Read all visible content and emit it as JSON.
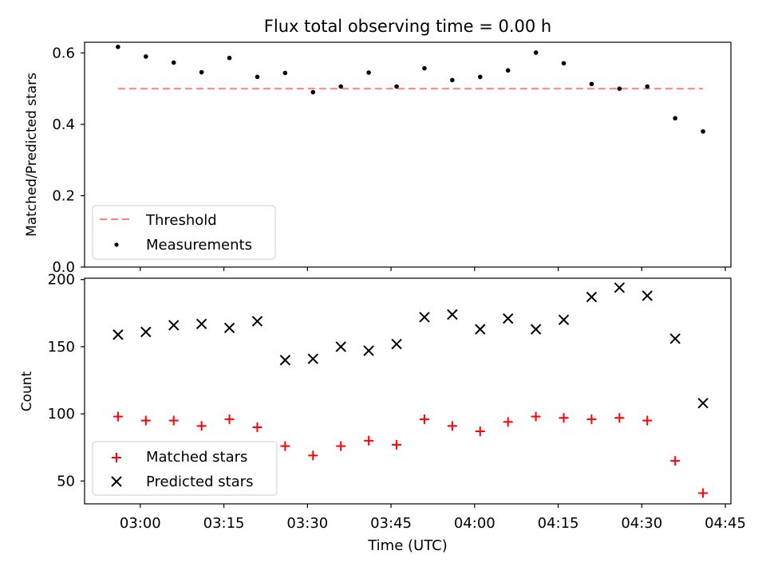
{
  "chart_data": [
    {
      "type": "scatter",
      "title": "Flux total observing time = 0.00 h",
      "xlabel": "",
      "ylabel": "Matched/Predicted stars",
      "xlim": [
        "02:50",
        "04:46"
      ],
      "ylim": [
        0,
        0.63
      ],
      "x_ticks": [
        "03:00",
        "03:15",
        "03:30",
        "03:45",
        "04:00",
        "04:15",
        "04:30",
        "04:45"
      ],
      "y_ticks": [
        "0.0",
        "0.2",
        "0.4",
        "0.6"
      ],
      "legend_position": "lower-left",
      "series": [
        {
          "name": "Threshold",
          "kind": "line",
          "style": "dashed",
          "color": "#ff7f7f",
          "x": [
            "02:56",
            "04:41"
          ],
          "y": [
            0.5,
            0.5
          ]
        },
        {
          "name": "Measurements",
          "kind": "scatter",
          "marker": "dot",
          "color": "#000000",
          "x": [
            "02:56",
            "03:01",
            "03:06",
            "03:11",
            "03:16",
            "03:21",
            "03:26",
            "03:31",
            "03:36",
            "03:41",
            "03:46",
            "03:51",
            "03:56",
            "04:01",
            "04:06",
            "04:11",
            "04:16",
            "04:21",
            "04:26",
            "04:31",
            "04:36",
            "04:41"
          ],
          "y": [
            0.617,
            0.59,
            0.573,
            0.546,
            0.586,
            0.533,
            0.544,
            0.49,
            0.506,
            0.545,
            0.506,
            0.557,
            0.524,
            0.533,
            0.551,
            0.601,
            0.571,
            0.513,
            0.5,
            0.506,
            0.417,
            0.38
          ]
        }
      ]
    },
    {
      "type": "scatter",
      "title": "",
      "xlabel": "Time (UTC)",
      "ylabel": "Count",
      "xlim": [
        "02:50",
        "04:46"
      ],
      "ylim": [
        33,
        201
      ],
      "x_ticks": [
        "03:00",
        "03:15",
        "03:30",
        "03:45",
        "04:00",
        "04:15",
        "04:30",
        "04:45"
      ],
      "y_ticks": [
        "50",
        "100",
        "150",
        "200"
      ],
      "legend_position": "lower-left",
      "series": [
        {
          "name": "Matched stars",
          "kind": "scatter",
          "marker": "plus",
          "color": "#ff0000",
          "x": [
            "02:56",
            "03:01",
            "03:06",
            "03:11",
            "03:16",
            "03:21",
            "03:26",
            "03:31",
            "03:36",
            "03:41",
            "03:46",
            "03:51",
            "03:56",
            "04:01",
            "04:06",
            "04:11",
            "04:16",
            "04:21",
            "04:26",
            "04:31",
            "04:36",
            "04:41"
          ],
          "y": [
            98,
            95,
            95,
            91,
            96,
            90,
            76,
            69,
            76,
            80,
            77,
            96,
            91,
            87,
            94,
            98,
            97,
            96,
            97,
            95,
            65,
            41
          ]
        },
        {
          "name": "Predicted stars",
          "kind": "scatter",
          "marker": "x",
          "color": "#000000",
          "x": [
            "02:56",
            "03:01",
            "03:06",
            "03:11",
            "03:16",
            "03:21",
            "03:26",
            "03:31",
            "03:36",
            "03:41",
            "03:46",
            "03:51",
            "03:56",
            "04:01",
            "04:06",
            "04:11",
            "04:16",
            "04:21",
            "04:26",
            "04:31",
            "04:36",
            "04:41"
          ],
          "y": [
            159,
            161,
            166,
            167,
            164,
            169,
            140,
            141,
            150,
            147,
            152,
            172,
            174,
            163,
            171,
            163,
            170,
            187,
            194,
            188,
            156,
            108
          ]
        }
      ]
    }
  ]
}
